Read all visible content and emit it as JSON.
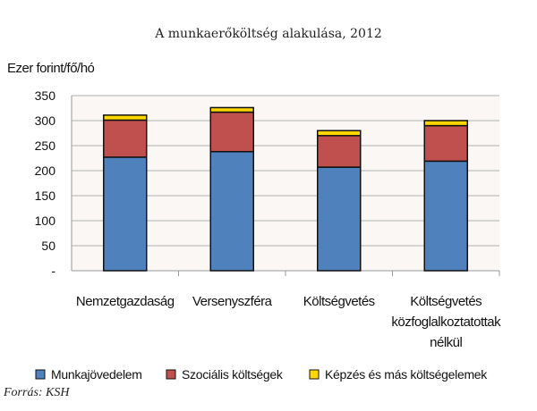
{
  "chart_data": {
    "type": "bar",
    "stacked": true,
    "title": "A munkaerőköltség alakulása, 2012",
    "ylabel": "Ezer forint/fő/hó",
    "xlabel": "",
    "ylim": [
      0,
      350
    ],
    "yticks": [
      0,
      50,
      100,
      150,
      200,
      250,
      300,
      350
    ],
    "ytick_labels": [
      "-",
      "50",
      "100",
      "150",
      "200",
      "250",
      "300",
      "350"
    ],
    "grid": true,
    "legend": "bottom",
    "categories": [
      [
        "Nemzetgazdaság"
      ],
      [
        "Versenyszféra"
      ],
      [
        "Költségvetés"
      ],
      [
        "Költségvetés",
        "közfoglalkoztatottak",
        "nélkül"
      ]
    ],
    "series": [
      {
        "name": "Munkajövedelem",
        "color": "#4f81bd",
        "values": [
          227,
          238,
          207,
          219
        ]
      },
      {
        "name": "Szociális költségek",
        "color": "#c0504d",
        "values": [
          74,
          79,
          63,
          71
        ]
      },
      {
        "name": "Képzés és más költségelemek",
        "color": "#ffd700",
        "values": [
          10,
          9,
          10,
          10
        ]
      }
    ]
  },
  "source": "Forrás: KSH"
}
